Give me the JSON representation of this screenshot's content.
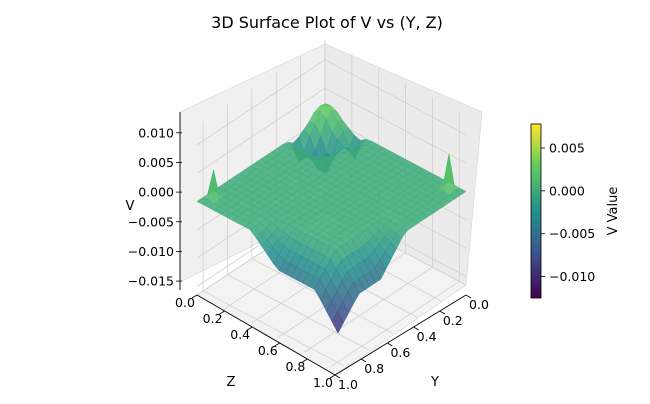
{
  "chart_data": {
    "type": "surface3d",
    "title": "3D Surface Plot of V vs (Y, Z)",
    "xlabel": "Y",
    "ylabel": "Z",
    "zlabel": "V",
    "x_ticks": [
      "0.0",
      "0.2",
      "0.4",
      "0.6",
      "0.8",
      "1.0"
    ],
    "y_ticks": [
      "0.0",
      "0.2",
      "0.4",
      "0.6",
      "0.8",
      "1.0"
    ],
    "z_ticks": [
      "−0.015",
      "−0.010",
      "−0.005",
      "0.000",
      "0.005",
      "0.010"
    ],
    "z_tick_values": [
      -0.015,
      -0.01,
      -0.005,
      0.0,
      0.005,
      0.01
    ],
    "xlim": [
      0,
      1
    ],
    "ylim": [
      0,
      1
    ],
    "zlim": [
      -0.0165,
      0.0135
    ],
    "colorbar": {
      "label": "V Value",
      "ticks": [
        "−0.010",
        "−0.005",
        "0.000",
        "0.005"
      ],
      "tick_values": [
        -0.01,
        -0.005,
        0.0,
        0.005
      ],
      "range": [
        -0.0125,
        0.0078
      ],
      "colormap": [
        "#440154",
        "#3b528b",
        "#21918c",
        "#5ec962",
        "#fde725"
      ]
    },
    "surface_samples": [
      {
        "y": 0.5,
        "z": 0.5,
        "v": 0.0
      },
      {
        "y": 0.05,
        "z": 0.05,
        "v": 0.0035
      },
      {
        "y": 0.97,
        "z": 0.05,
        "v": 0.0075
      },
      {
        "y": 0.05,
        "z": 0.97,
        "v": 0.006
      },
      {
        "y": 0.97,
        "z": 0.97,
        "v": -0.005
      },
      {
        "y": 0.15,
        "z": 0.15,
        "v": -0.006
      },
      {
        "y": 0.97,
        "z": 0.6,
        "v": -0.006
      }
    ],
    "grid": true
  }
}
